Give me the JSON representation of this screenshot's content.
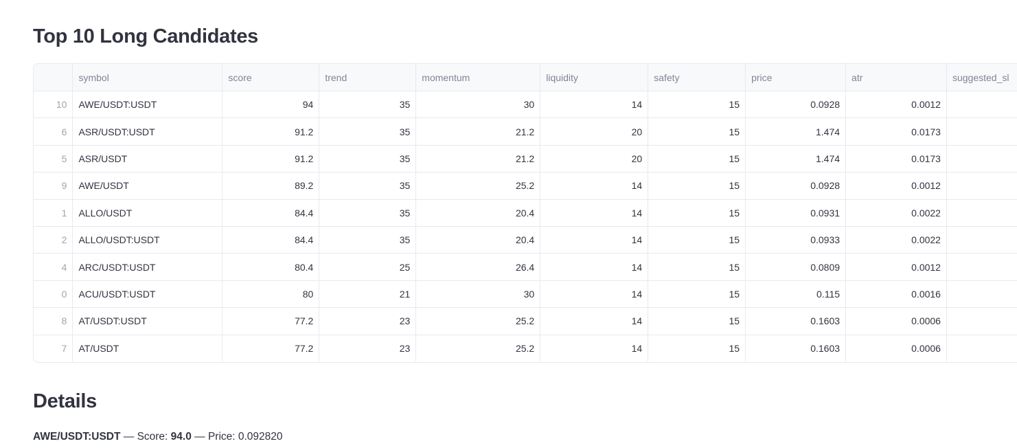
{
  "title": "Top 10 Long Candidates",
  "table": {
    "columns": [
      "",
      "symbol",
      "score",
      "trend",
      "momentum",
      "liquidity",
      "safety",
      "price",
      "atr",
      "suggested_sl"
    ],
    "rows": [
      [
        "10",
        "AWE/USDT:USDT",
        "94",
        "35",
        "30",
        "14",
        "15",
        "0.0928",
        "0.0012",
        ""
      ],
      [
        "6",
        "ASR/USDT:USDT",
        "91.2",
        "35",
        "21.2",
        "20",
        "15",
        "1.474",
        "0.0173",
        ""
      ],
      [
        "5",
        "ASR/USDT",
        "91.2",
        "35",
        "21.2",
        "20",
        "15",
        "1.474",
        "0.0173",
        ""
      ],
      [
        "9",
        "AWE/USDT",
        "89.2",
        "35",
        "25.2",
        "14",
        "15",
        "0.0928",
        "0.0012",
        ""
      ],
      [
        "1",
        "ALLO/USDT",
        "84.4",
        "35",
        "20.4",
        "14",
        "15",
        "0.0931",
        "0.0022",
        ""
      ],
      [
        "2",
        "ALLO/USDT:USDT",
        "84.4",
        "35",
        "20.4",
        "14",
        "15",
        "0.0933",
        "0.0022",
        ""
      ],
      [
        "4",
        "ARC/USDT:USDT",
        "80.4",
        "25",
        "26.4",
        "14",
        "15",
        "0.0809",
        "0.0012",
        ""
      ],
      [
        "0",
        "ACU/USDT:USDT",
        "80",
        "21",
        "30",
        "14",
        "15",
        "0.115",
        "0.0016",
        ""
      ],
      [
        "8",
        "AT/USDT:USDT",
        "77.2",
        "23",
        "25.2",
        "14",
        "15",
        "0.1603",
        "0.0006",
        ""
      ],
      [
        "7",
        "AT/USDT",
        "77.2",
        "23",
        "25.2",
        "14",
        "15",
        "0.1603",
        "0.0006",
        ""
      ]
    ]
  },
  "details": {
    "title": "Details",
    "symbol": "AWE/USDT:USDT",
    "sep1": " — Score: ",
    "score": "94.0",
    "sep2": " — Price: 0.092820"
  }
}
